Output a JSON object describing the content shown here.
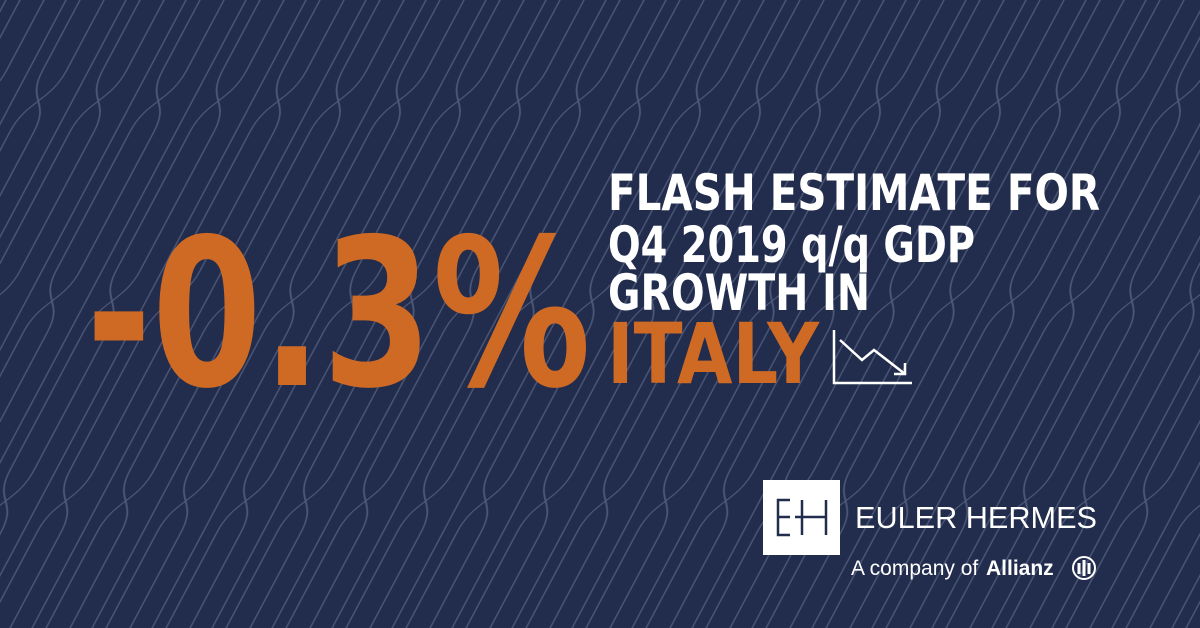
{
  "figure": {
    "value": "-0.3%",
    "headline": [
      "FLASH ESTIMATE FOR",
      "Q4 2019 q/q GDP",
      "GROWTH IN"
    ],
    "country": "ITALY"
  },
  "brand": {
    "name": "EULER HERMES",
    "tagline": "A company of",
    "parent": "Allianz"
  }
}
